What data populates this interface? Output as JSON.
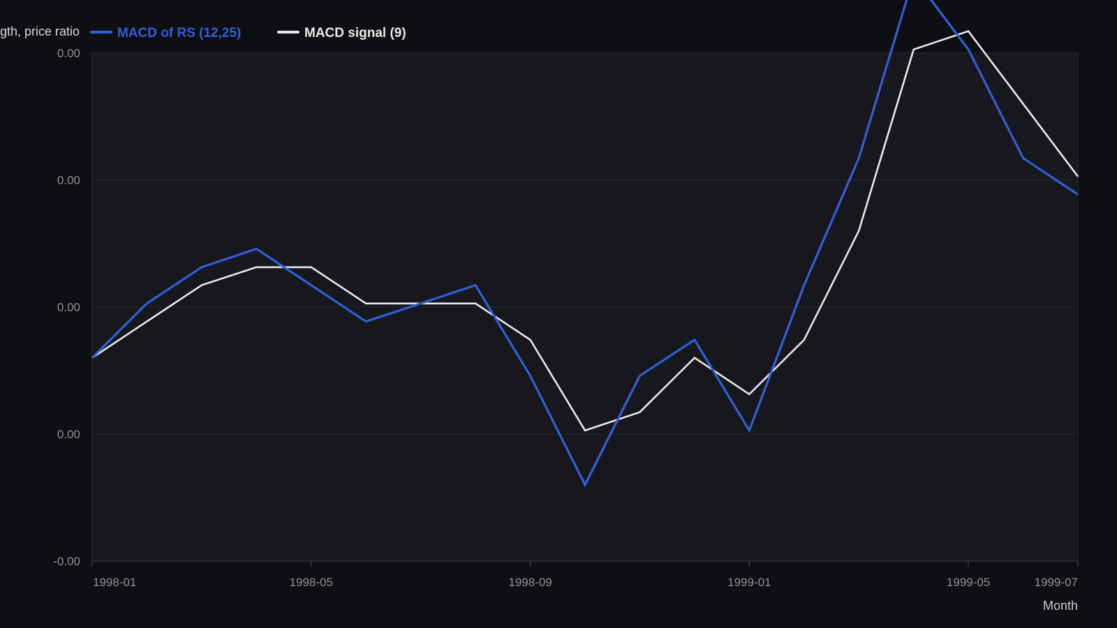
{
  "chart_data": {
    "type": "line",
    "title": "",
    "ylabel": "Relative strength, price ratio",
    "xlabel": "Month",
    "x": [
      "1998-01",
      "1998-02",
      "1998-03",
      "1998-04",
      "1998-05",
      "1998-06",
      "1998-07",
      "1998-08",
      "1998-09",
      "1998-10",
      "1998-11",
      "1998-12",
      "1999-01",
      "1999-02",
      "1999-03",
      "1999-04",
      "1999-05",
      "1999-06",
      "1999-07"
    ],
    "x_ticks": [
      "1998-01",
      "1998-05",
      "1998-09",
      "1999-01",
      "1999-05",
      "1999-07"
    ],
    "y_ticks": [
      "-0.00",
      "0.00",
      "0.00",
      "0.00",
      "0.00"
    ],
    "ylim": [
      -8e-05,
      0.00012
    ],
    "grid": true,
    "legend_placement": "top-left",
    "series": [
      {
        "name": "MACD of RS (12,25)",
        "color": "#2f5fd6",
        "values": [
          0,
          2.14e-05,
          3.57e-05,
          4.29e-05,
          2.86e-05,
          1.43e-05,
          2.14e-05,
          2.86e-05,
          -7.1e-06,
          -5e-05,
          -7.1e-06,
          7.1e-06,
          -2.86e-05,
          2.86e-05,
          7.86e-05,
          0.00015,
          0.0001214,
          7.86e-05,
          6.43e-05
        ]
      },
      {
        "name": "MACD signal (9)",
        "color": "#e8e8e8",
        "values": [
          0,
          1.43e-05,
          2.86e-05,
          3.57e-05,
          3.57e-05,
          2.14e-05,
          2.14e-05,
          2.14e-05,
          7.1e-06,
          -2.86e-05,
          -2.14e-05,
          0,
          -1.43e-05,
          7.1e-06,
          5e-05,
          0.0001214,
          0.0001286,
          0.0001,
          7.14e-05
        ]
      }
    ]
  }
}
